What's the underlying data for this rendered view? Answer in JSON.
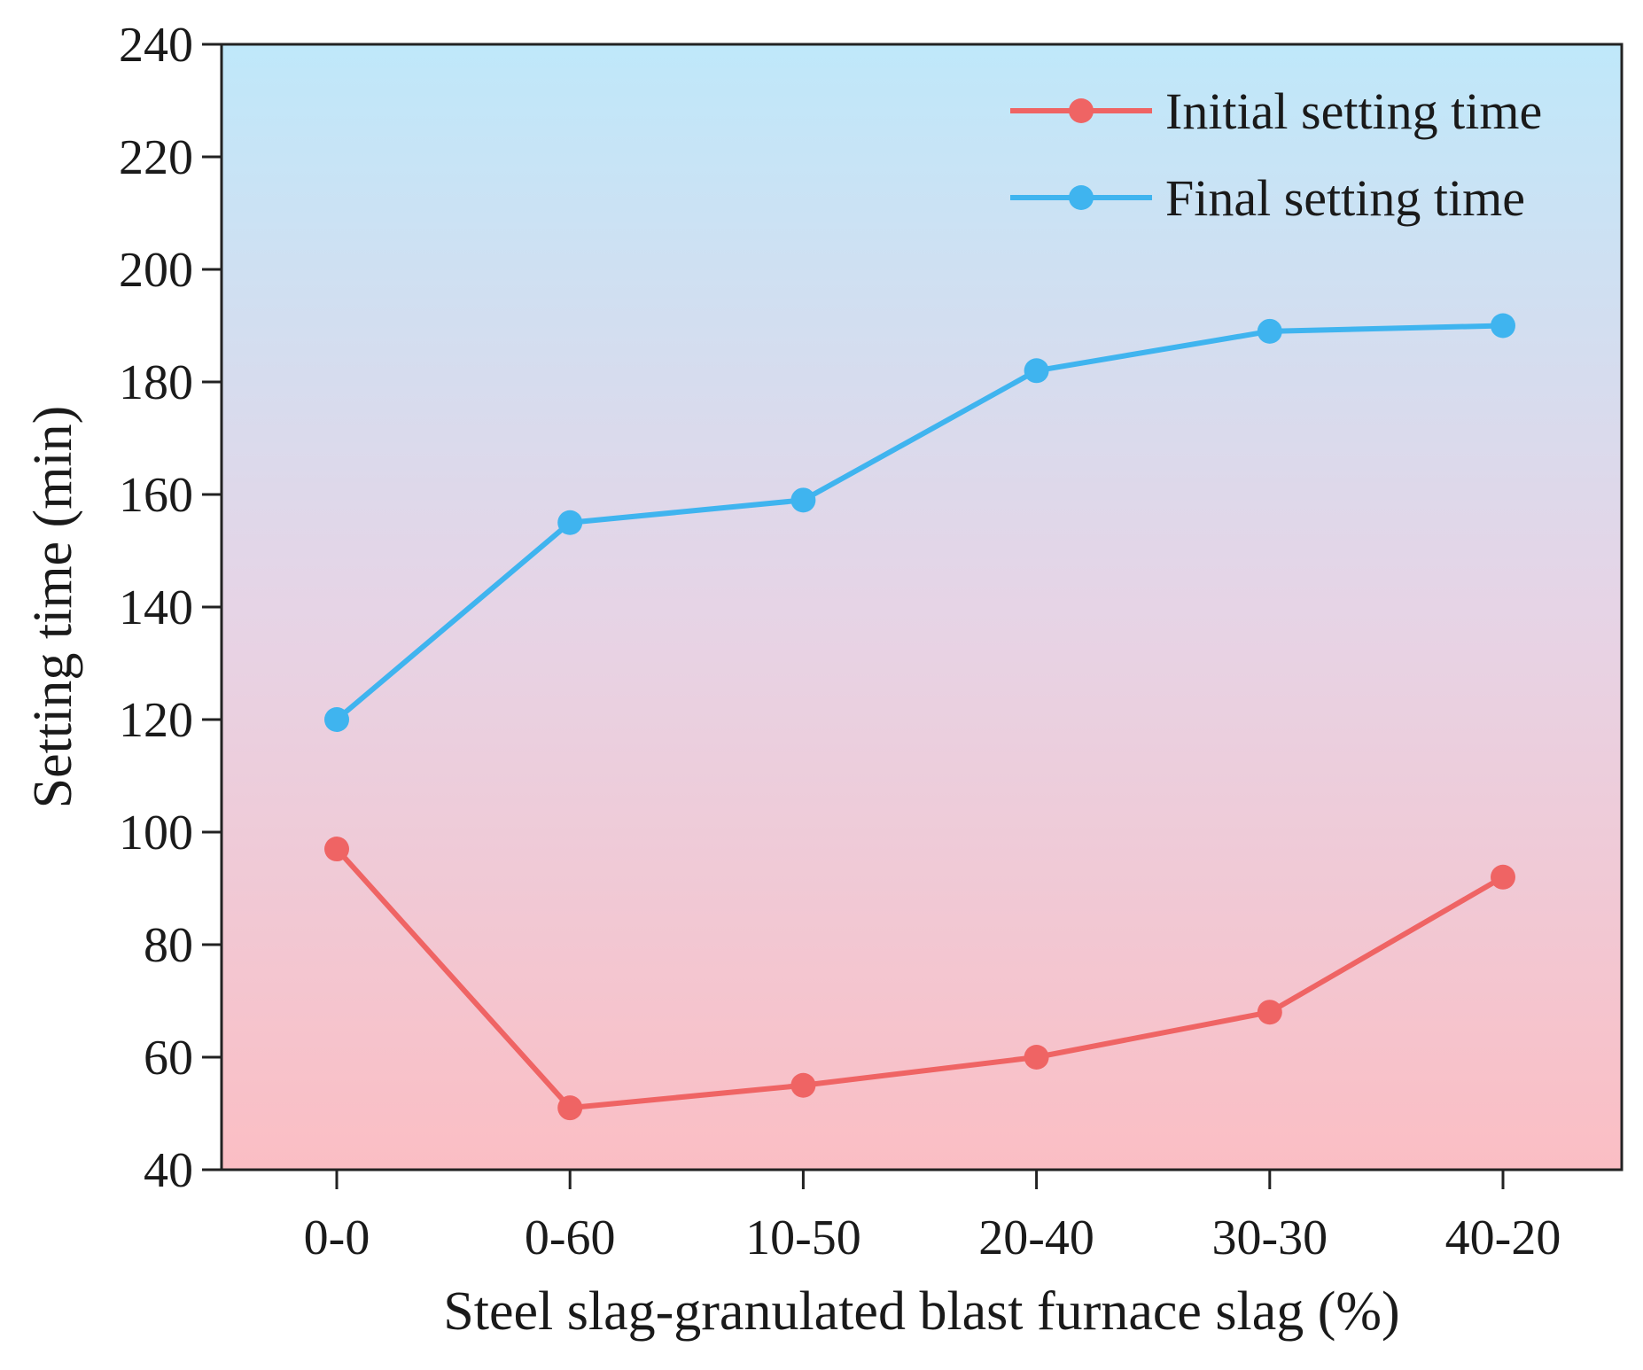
{
  "chart_data": {
    "type": "line",
    "title": "",
    "xlabel": "Steel slag-granulated blast furnace slag (%)",
    "ylabel": "Setting time (min)",
    "categories": [
      "0-0",
      "0-60",
      "10-50",
      "20-40",
      "30-30",
      "40-20"
    ],
    "ylim": [
      40,
      240
    ],
    "yticks": [
      40,
      60,
      80,
      100,
      120,
      140,
      160,
      180,
      200,
      220,
      240
    ],
    "legend_position": "top-right",
    "background_gradient": {
      "top": "#bfe8fa",
      "middle": "#e6d4e6",
      "bottom": "#fbbec4"
    },
    "series": [
      {
        "name": "Initial setting time",
        "color": "#ef6464",
        "values": [
          97,
          51,
          55,
          60,
          68,
          92
        ]
      },
      {
        "name": "Final setting time",
        "color": "#3fb4ef",
        "values": [
          120,
          155,
          159,
          182,
          189,
          190
        ]
      }
    ]
  }
}
